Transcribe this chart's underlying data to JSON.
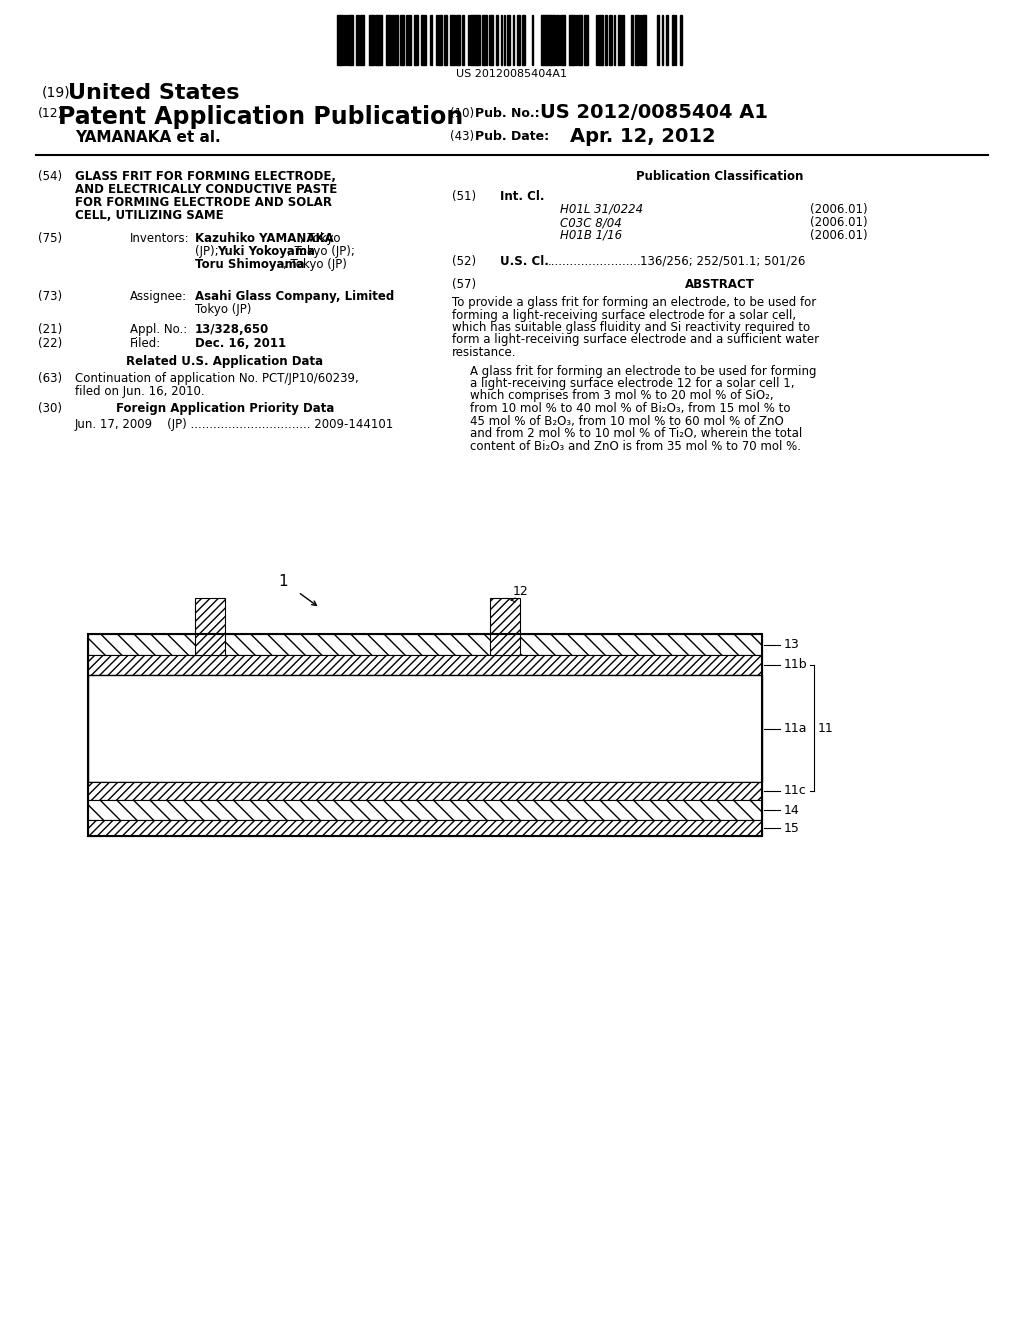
{
  "bg_color": "#ffffff",
  "barcode_text": "US 20120085404A1",
  "title_19": "(19)",
  "title_19_bold": "United States",
  "title_12_num": "(12)",
  "title_12_bold": "Patent Application Publication",
  "pub_no_num": "(10)",
  "pub_no_label": "Pub. No.:",
  "pub_no_value": "US 2012/0085404 A1",
  "inventors_label": "YAMANAKA et al.",
  "pub_date_num": "(43)",
  "pub_date_label": "Pub. Date:",
  "pub_date_value": "Apr. 12, 2012",
  "section_54_label": "(54)",
  "section_54_lines": [
    "GLASS FRIT FOR FORMING ELECTRODE,",
    "AND ELECTRICALLY CONDUCTIVE PASTE",
    "FOR FORMING ELECTRODE AND SOLAR",
    "CELL, UTILIZING SAME"
  ],
  "pub_class_header": "Publication Classification",
  "section_51_label": "(51)",
  "int_cl_label": "Int. Cl.",
  "int_cl_entries": [
    [
      "H01L 31/0224",
      "(2006.01)"
    ],
    [
      "C03C 8/04",
      "(2006.01)"
    ],
    [
      "H01B 1/16",
      "(2006.01)"
    ]
  ],
  "section_52_label": "(52)",
  "us_cl_label": "U.S. Cl.",
  "us_cl_dots": ".........................",
  "us_cl_value": "136/256; 252/501.1; 501/26",
  "section_75_label": "(75)",
  "inventors_title": "Inventors:",
  "inv_line1_bold": "Kazuhiko YAMANAKA",
  "inv_line1_rest": ", Tokyo",
  "inv_line2": "(JP); ",
  "inv_line2_bold": "Yuki Yokoyama",
  "inv_line2_rest": ", Tokyo (JP);",
  "inv_line3_bold": "Toru Shimoyama",
  "inv_line3_rest": ", Tokyo (JP)",
  "section_57_label": "(57)",
  "abstract_header": "ABSTRACT",
  "abstract_text1_lines": [
    "To provide a glass frit for forming an electrode, to be used for",
    "forming a light-receiving surface electrode for a solar cell,",
    "which has suitable glass fluidity and Si reactivity required to",
    "form a light-receiving surface electrode and a sufficient water",
    "resistance."
  ],
  "abstract_text2_lines": [
    "A glass frit for forming an electrode to be used for forming",
    "a light-receiving surface electrode 12 for a solar cell 1,",
    "which comprises from 3 mol % to 20 mol % of SiO₂,",
    "from 10 mol % to 40 mol % of Bi₂O₃, from 15 mol % to",
    "45 mol % of B₂O₃, from 10 mol % to 60 mol % of ZnO",
    "and from 2 mol % to 10 mol % of Ti₂O, wherein the total",
    "content of Bi₂O₃ and ZnO is from 35 mol % to 70 mol %."
  ],
  "section_73_label": "(73)",
  "assignee_title": "Assignee:",
  "assignee_line1_bold": "Asahi Glass Company, Limited",
  "assignee_line1_rest": ",",
  "assignee_line2": "Tokyo (JP)",
  "section_21_label": "(21)",
  "appl_no_title": "Appl. No.:",
  "appl_no_value": "13/328,650",
  "section_22_label": "(22)",
  "filed_title": "Filed:",
  "filed_value": "Dec. 16, 2011",
  "related_us_header": "Related U.S. Application Data",
  "section_63_label": "(63)",
  "cont_line1": "Continuation of application No. PCT/JP10/60239,",
  "cont_line2": "filed on Jun. 16, 2010.",
  "section_30_label": "(30)",
  "foreign_header": "Foreign Application Priority Data",
  "foreign_entry": "Jun. 17, 2009    (JP) ................................ 2009-144101",
  "diag_label_1": "1",
  "diag_label_12": "12",
  "diag_label_13": "13",
  "diag_label_11b": "11b",
  "diag_label_11a": "11a",
  "diag_label_11": "11",
  "diag_label_11c": "11c",
  "diag_label_14": "14",
  "diag_label_15": "15"
}
